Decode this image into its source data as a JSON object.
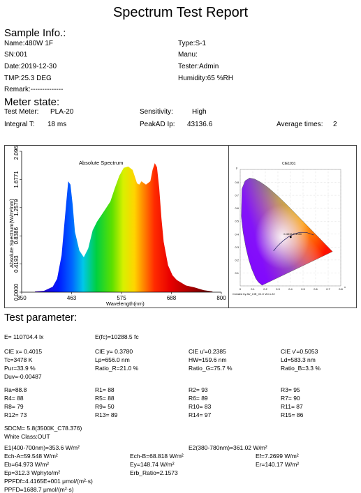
{
  "report_title": "Spectrum Test Report",
  "sample": {
    "heading": "Sample Info.:",
    "name": "Name:480W 1F",
    "sn": "SN:001",
    "date": "Date:2019-12-30",
    "tmp": "TMP:25.3 DEG",
    "remark": "Remark:--------------",
    "type": "Type:S-1",
    "manu": "Manu:",
    "tester": "Tester:Admin",
    "humidity": "Humidity:65 %RH"
  },
  "meter": {
    "heading": "Meter state:",
    "test_meter_label": "Test Meter:",
    "test_meter_value": "PLA-20",
    "integral_label": "Integral T:",
    "integral_value": "18 ms",
    "sensitivity_label": "Sensitivity:",
    "sensitivity_value": "High",
    "peakad_label": "PeakAD Ip:",
    "peakad_value": "43136.6",
    "avg_label": "Average times:",
    "avg_value": "2"
  },
  "spectrum_chart": {
    "title": "Absolute Spectrum",
    "xlabel": "Wavelength(nm)",
    "ylabel": "Absolute Spectrum(W/m²/nm)",
    "x_ticks": [
      "350",
      "463",
      "575",
      "688",
      "800"
    ],
    "y_ticks": [
      "0.0000",
      "0.4193",
      "0.8386",
      "1.2579",
      "1.6771",
      "2.0964"
    ]
  },
  "cie_chart": {
    "title": "CIE1931",
    "x_ticks": [
      "0",
      "0.1",
      "0.2",
      "0.3",
      "0.4",
      "0.5",
      "0.6",
      "0.7",
      "0.8"
    ],
    "y_ticks": [
      "0.1",
      "0.2",
      "0.3",
      "0.4",
      "0.5",
      "0.6",
      "0.7",
      "0.8"
    ],
    "x_axis_label": "x",
    "y_axis_label": "y",
    "point_label": "0.4015,0.3780",
    "footer": "Created by AV_CIE_V1.0 Ver.1.22"
  },
  "chart_data": [
    {
      "type": "area",
      "title": "Absolute Spectrum",
      "xlabel": "Wavelength(nm)",
      "ylabel": "Absolute Spectrum(W/m²/nm)",
      "xlim": [
        350,
        800
      ],
      "ylim": [
        0,
        2.0964
      ],
      "x": [
        380,
        400,
        420,
        430,
        440,
        450,
        455,
        460,
        465,
        470,
        480,
        490,
        500,
        510,
        520,
        530,
        540,
        550,
        560,
        570,
        580,
        590,
        600,
        605,
        610,
        615,
        620,
        630,
        640,
        645,
        650,
        655,
        660,
        665,
        670,
        680,
        690,
        700,
        720,
        740,
        760,
        780
      ],
      "y": [
        0.01,
        0.02,
        0.08,
        0.2,
        0.55,
        1.3,
        1.65,
        1.6,
        1.3,
        0.9,
        0.62,
        0.52,
        0.65,
        0.92,
        1.05,
        1.15,
        1.25,
        1.35,
        1.55,
        1.73,
        1.85,
        1.87,
        1.82,
        1.72,
        1.62,
        1.6,
        1.65,
        1.6,
        1.65,
        1.82,
        1.92,
        1.86,
        1.55,
        1.1,
        0.75,
        0.4,
        0.25,
        0.18,
        0.1,
        0.07,
        0.03,
        0.01
      ]
    },
    {
      "type": "scatter",
      "title": "CIE1931",
      "xlim": [
        0,
        0.8
      ],
      "ylim": [
        0,
        0.9
      ],
      "points": [
        {
          "x": 0.4015,
          "y": 0.378
        }
      ]
    }
  ],
  "test_param": {
    "heading": "Test parameter:",
    "e": "E=  110704.4 lx",
    "efc": "E(fc)=10288.5 fc",
    "cie_x": "CIE x= 0.4015",
    "cie_y": "CIE y= 0.3780",
    "cie_u": "CIE u'=0.2385",
    "cie_v": "CIE v'=0.5053",
    "tc": "Tc=3478 K",
    "lp": "Lp=656.0 nm",
    "hw": "HW=159.6 nm",
    "ld": "Ld=583.3 nm",
    "pur": "Pur=33.9 %",
    "ratio_r": "Ratio_R=21.0 %",
    "ratio_g": "Ratio_G=75.7 %",
    "ratio_b": "Ratio_B=3.3 %",
    "duv": "Duv=-0.00487",
    "ra": "Ra=88.8",
    "r1": "R1= 88",
    "r2": "R2= 93",
    "r3": "R3= 95",
    "r4": "R4= 88",
    "r5": "R5= 88",
    "r6": "R6= 89",
    "r7": "R7= 90",
    "r8": "R8= 79",
    "r9": "R9= 50",
    "r10": "R10= 83",
    "r11": "R11= 87",
    "r12": "R12= 73",
    "r13": "R13= 89",
    "r14": "R14= 97",
    "r15": "R15= 86",
    "sdcm": "SDCM= 5.8(3500K_C78.376)",
    "white_class": "White Class:OUT",
    "e1": "E1(400-700nm)=353.6 W/m²",
    "e2": "E2(380-780nm)=361.02 W/m²",
    "ech_a": "Ech-A=59.548 W/m²",
    "ech_b": "Ech-B=68.818 W/m²",
    "ef": "Ef=7.2699 W/m²",
    "eb": "Eb=64.973 W/m²",
    "ey": "Ey=148.74 W/m²",
    "er": "Er=140.17 W/m²",
    "ep": "Ep=312.3 Wphyto/m²",
    "erb": "Erb_Ratio=2.1573",
    "ppfdf": "PPFDf=4.4165E+001 μmol/(m²·s)",
    "ppfd": "PPFD=1688.7 μmol/(m²·s)"
  }
}
